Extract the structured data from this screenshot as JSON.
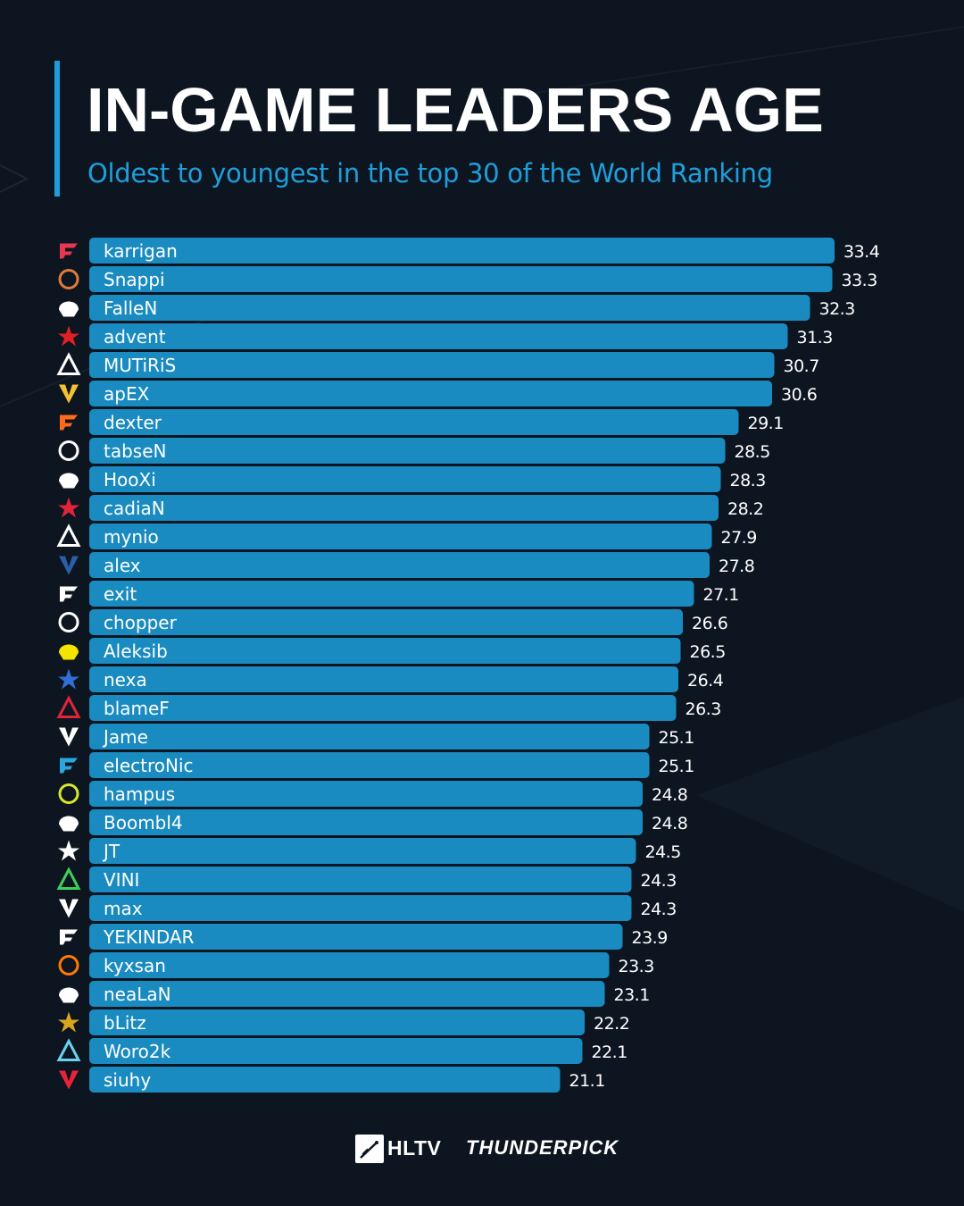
{
  "header": {
    "title": "IN-GAME LEADERS AGE",
    "subtitle": "Oldest to youngest in the top 30 of the World Ranking"
  },
  "colors": {
    "background": "#0d1520",
    "bar": "#1a8bc0",
    "accent": "#1e9fdc",
    "text": "#ffffff"
  },
  "chart_data": {
    "type": "bar",
    "orientation": "horizontal",
    "title": "IN-GAME LEADERS AGE",
    "subtitle": "Oldest to youngest in the top 30 of the World Ranking",
    "categories": [
      "karrigan",
      "Snappi",
      "FalleN",
      "advent",
      "MUTiRiS",
      "apEX",
      "dexter",
      "tabseN",
      "HooXi",
      "cadiaN",
      "mynio",
      "alex",
      "exit",
      "chopper",
      "Aleksib",
      "nexa",
      "blameF",
      "Jame",
      "electroNic",
      "hampus",
      "Boombl4",
      "JT",
      "VINI",
      "max",
      "YEKINDAR",
      "kyxsan",
      "neaLaN",
      "bLitz",
      "Woro2k",
      "siuhy"
    ],
    "values": [
      33.4,
      33.3,
      32.3,
      31.3,
      30.7,
      30.6,
      29.1,
      28.5,
      28.3,
      28.2,
      27.9,
      27.8,
      27.1,
      26.6,
      26.5,
      26.4,
      26.3,
      25.1,
      25.1,
      24.8,
      24.8,
      24.5,
      24.3,
      24.3,
      23.9,
      23.3,
      23.1,
      22.2,
      22.1,
      21.1
    ],
    "team_icons": [
      "faze-icon",
      "ence-icon",
      "furia-icon",
      "rebels-icon",
      "sangal-icon",
      "vitality-icon",
      "fnatic-icon",
      "big-icon",
      "g2-icon",
      "heroic-icon",
      "eternal-fire-icon",
      "movistar-riders-icon",
      "mibr-icon",
      "spirit-icon",
      "navi-icon",
      "og-icon",
      "astralis-icon",
      "virtus-pro-icon",
      "cloud9-icon",
      "nip-icon",
      "1win-icon",
      "complexity-icon",
      "imperial-icon",
      "9z-icon",
      "liquid-icon",
      "monte-icon",
      "gamerlegion-icon",
      "thelnk-icon",
      "ihc-icon",
      "mouz-icon"
    ],
    "xlabel": "",
    "ylabel": "",
    "grid": false,
    "legend": "none"
  },
  "footer": {
    "hltv_label": "HLTV",
    "partner_label": "THUNDERPICK"
  }
}
